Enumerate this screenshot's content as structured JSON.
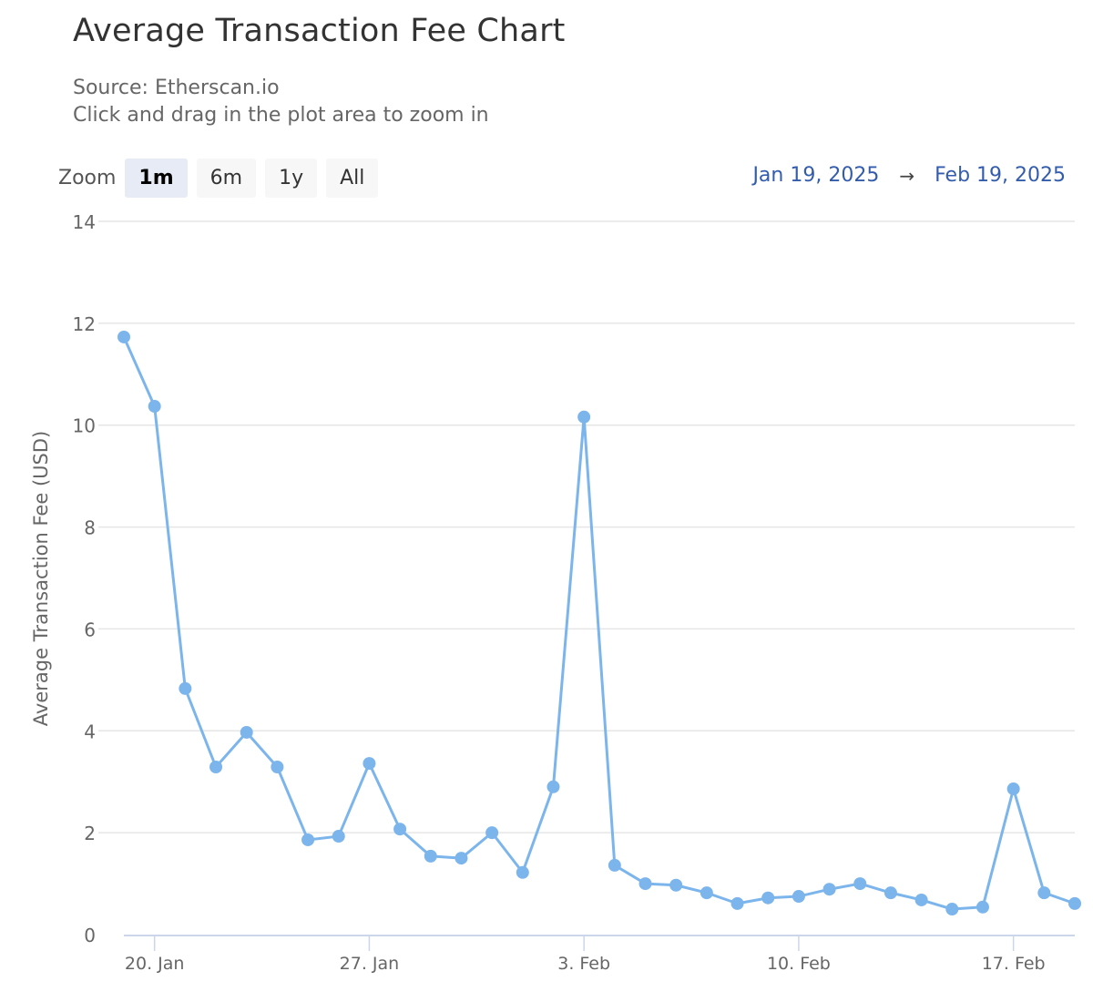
{
  "header": {
    "title": "Average Transaction Fee Chart",
    "source": "Source: Etherscan.io",
    "hint": "Click and drag in the plot area to zoom in"
  },
  "zoom": {
    "label": "Zoom",
    "buttons": [
      {
        "label": "1m",
        "active": true
      },
      {
        "label": "6m",
        "active": false
      },
      {
        "label": "1y",
        "active": false
      },
      {
        "label": "All",
        "active": false
      }
    ]
  },
  "range": {
    "from": "Jan 19, 2025",
    "arrow": "→",
    "to": "Feb 19, 2025"
  },
  "colors": {
    "series": "#7cb5ec",
    "grid": "#e6e6e6",
    "axis": "#ccd6eb",
    "range_text": "#335cad"
  },
  "chart_data": {
    "type": "line",
    "title": "Average Transaction Fee Chart",
    "subtitle": "Source: Etherscan.io",
    "xlabel": "",
    "ylabel": "Average Transaction Fee (USD)",
    "ylim": [
      0,
      14
    ],
    "yticks": [
      0,
      2,
      4,
      6,
      8,
      10,
      12,
      14
    ],
    "xtick_labels": [
      "20. Jan",
      "27. Jan",
      "3. Feb",
      "10. Feb",
      "17. Feb"
    ],
    "grid": true,
    "legend": "none",
    "x": [
      "2025-01-19",
      "2025-01-20",
      "2025-01-21",
      "2025-01-22",
      "2025-01-23",
      "2025-01-24",
      "2025-01-25",
      "2025-01-26",
      "2025-01-27",
      "2025-01-28",
      "2025-01-29",
      "2025-01-30",
      "2025-01-31",
      "2025-02-01",
      "2025-02-02",
      "2025-02-03",
      "2025-02-04",
      "2025-02-05",
      "2025-02-06",
      "2025-02-07",
      "2025-02-08",
      "2025-02-09",
      "2025-02-10",
      "2025-02-11",
      "2025-02-12",
      "2025-02-13",
      "2025-02-14",
      "2025-02-15",
      "2025-02-16",
      "2025-02-17",
      "2025-02-18",
      "2025-02-19"
    ],
    "series": [
      {
        "name": "Average Transaction Fee (USD)",
        "values": [
          11.73,
          10.37,
          4.83,
          3.29,
          3.97,
          3.29,
          1.86,
          1.93,
          3.36,
          2.07,
          1.54,
          1.5,
          2.0,
          1.22,
          2.9,
          10.16,
          1.36,
          1.0,
          0.97,
          0.82,
          0.61,
          0.72,
          0.75,
          0.89,
          1.0,
          0.82,
          0.68,
          0.5,
          0.54,
          2.86,
          0.82,
          0.61
        ]
      }
    ]
  }
}
